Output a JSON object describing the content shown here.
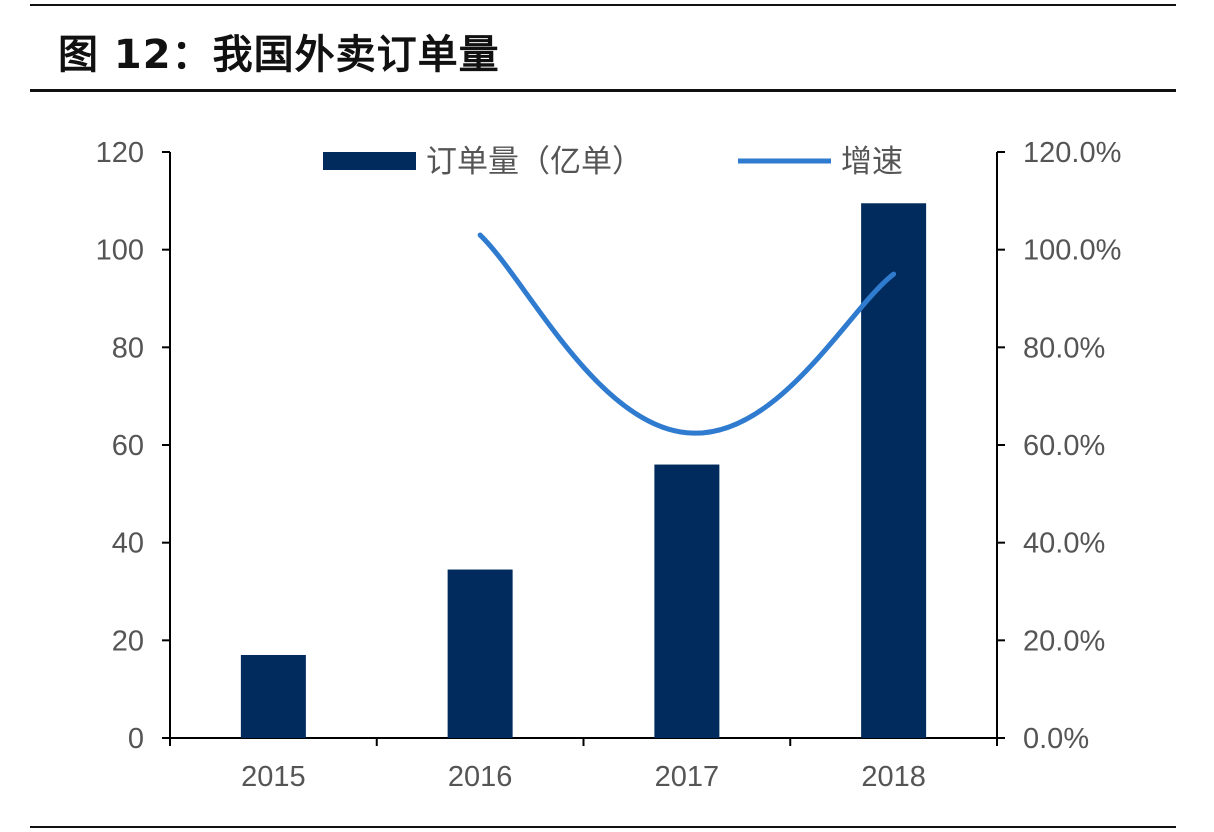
{
  "title": "图 12：我国外卖订单量",
  "chart_data": {
    "type": "bar",
    "categories": [
      "2015",
      "2016",
      "2017",
      "2018"
    ],
    "series": [
      {
        "name": "订单量（亿单）",
        "type": "bar",
        "axis": "left",
        "values": [
          17,
          34.5,
          56,
          109.5
        ],
        "color": "#002b5c"
      },
      {
        "name": "增速",
        "type": "line",
        "axis": "right",
        "values": [
          null,
          1.03,
          0.625,
          0.95
        ],
        "color": "#2e7bcf"
      }
    ],
    "yleft": {
      "ylim": [
        0,
        120
      ],
      "ticks": [
        0,
        20,
        40,
        60,
        80,
        100,
        120
      ],
      "tick_labels": [
        "0",
        "20",
        "40",
        "60",
        "80",
        "100",
        "120"
      ]
    },
    "yright": {
      "ylim": [
        0,
        1.2
      ],
      "ticks": [
        0,
        0.2,
        0.4,
        0.6,
        0.8,
        1.0,
        1.2
      ],
      "tick_labels": [
        "0.0%",
        "20.0%",
        "40.0%",
        "60.0%",
        "80.0%",
        "100.0%",
        "120.0%"
      ]
    },
    "legend": "top-center",
    "grid": false
  }
}
